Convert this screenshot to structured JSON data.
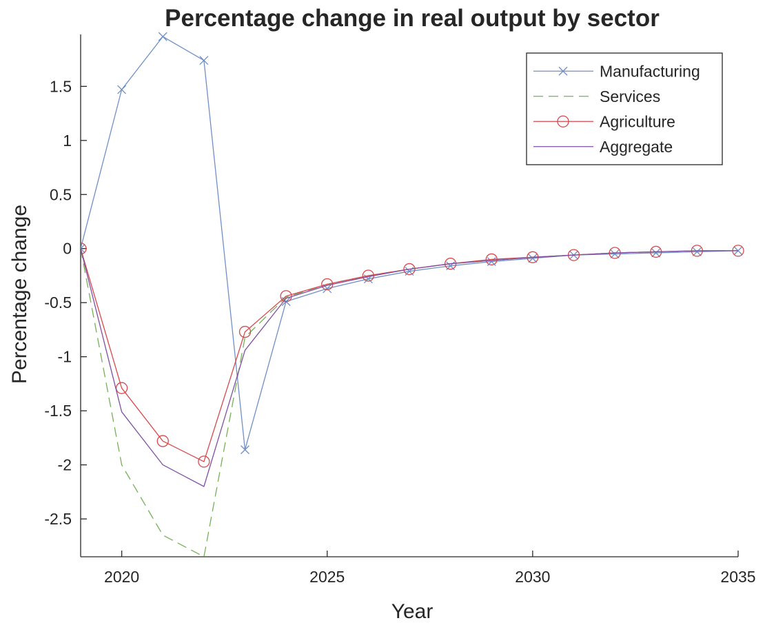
{
  "chart_data": {
    "type": "line",
    "title": "Percentage change in real output by sector",
    "xlabel": "Year",
    "ylabel": "Percentage change",
    "xlim": [
      2019,
      2035
    ],
    "ylim": [
      -2.85,
      1.98
    ],
    "xticks": [
      2020,
      2025,
      2030,
      2035
    ],
    "yticks": [
      -2.5,
      -2,
      -1.5,
      -1,
      -0.5,
      0,
      0.5,
      1,
      1.5
    ],
    "ytick_labels": [
      "-2.5",
      "-2",
      "-1.5",
      "-1",
      "-0.5",
      "0",
      "0.5",
      "1",
      "1.5"
    ],
    "grid": false,
    "legend_position": "top-right",
    "x": [
      2019,
      2020,
      2021,
      2022,
      2023,
      2024,
      2025,
      2026,
      2027,
      2028,
      2029,
      2030,
      2031,
      2032,
      2033,
      2034,
      2035
    ],
    "series": [
      {
        "name": "Manufacturing",
        "color": "#6f8fc6",
        "style": "solid",
        "marker": "x",
        "values": [
          0,
          1.47,
          1.96,
          1.74,
          -1.86,
          -0.49,
          -0.37,
          -0.28,
          -0.21,
          -0.16,
          -0.12,
          -0.09,
          -0.06,
          -0.05,
          -0.04,
          -0.03,
          -0.02
        ]
      },
      {
        "name": "Services",
        "color": "#73b054",
        "style": "dashed",
        "marker": "none",
        "values": [
          0,
          -2.0,
          -2.65,
          -2.85,
          -0.82,
          -0.45,
          -0.33,
          -0.25,
          -0.19,
          -0.14,
          -0.11,
          -0.08,
          -0.06,
          -0.04,
          -0.03,
          -0.02,
          -0.02
        ]
      },
      {
        "name": "Agriculture",
        "color": "#d8474b",
        "style": "solid",
        "marker": "o",
        "values": [
          0,
          -1.29,
          -1.78,
          -1.97,
          -0.77,
          -0.44,
          -0.33,
          -0.25,
          -0.19,
          -0.14,
          -0.1,
          -0.08,
          -0.06,
          -0.04,
          -0.03,
          -0.02,
          -0.02
        ]
      },
      {
        "name": "Aggregate",
        "color": "#7f4fa3",
        "style": "solid",
        "marker": "none",
        "values": [
          0,
          -1.51,
          -2.0,
          -2.2,
          -0.94,
          -0.46,
          -0.34,
          -0.26,
          -0.19,
          -0.14,
          -0.11,
          -0.08,
          -0.06,
          -0.04,
          -0.03,
          -0.02,
          -0.02
        ]
      }
    ]
  }
}
